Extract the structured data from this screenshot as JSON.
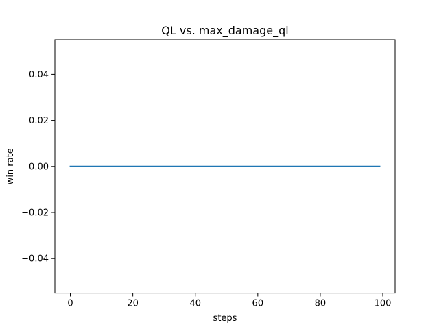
{
  "chart_data": {
    "type": "line",
    "title": "QL vs. max_damage_ql",
    "xlabel": "steps",
    "ylabel": "win rate",
    "xlim": [
      -4.95,
      103.95
    ],
    "ylim": [
      -0.055,
      0.055
    ],
    "xticks": [
      0,
      20,
      40,
      60,
      80,
      100
    ],
    "yticks": [
      -0.04,
      -0.02,
      0.0,
      0.02,
      0.04
    ],
    "xtick_labels": [
      "0",
      "20",
      "40",
      "60",
      "80",
      "100"
    ],
    "ytick_labels": [
      "−0.04",
      "−0.02",
      "0.00",
      "0.02",
      "0.04"
    ],
    "grid": false,
    "series": [
      {
        "color": "#1f77b4",
        "x_start": 0,
        "x_end": 99,
        "x_step": 1,
        "constant_value": 0.0
      }
    ]
  }
}
